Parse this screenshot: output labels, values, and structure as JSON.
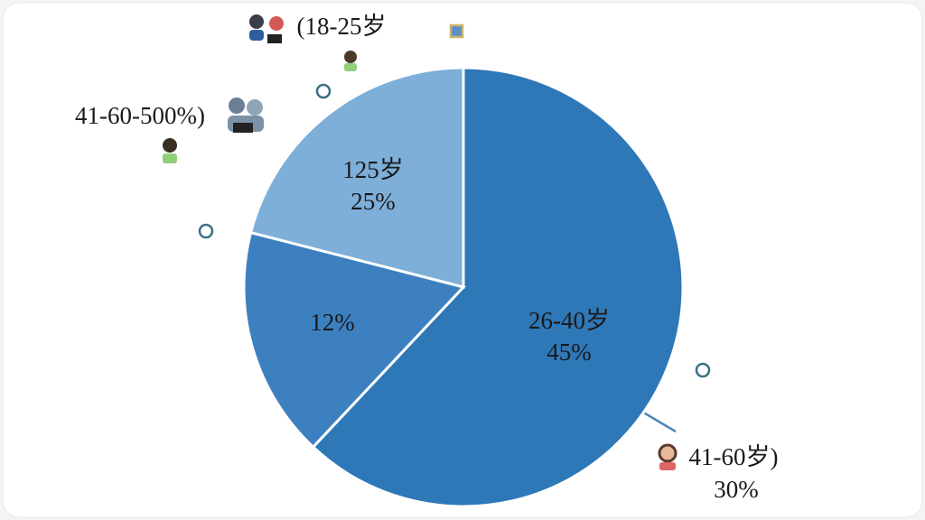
{
  "chart_data": {
    "type": "pie",
    "categories": [
      null,
      null,
      null
    ],
    "values": [
      62,
      17,
      21
    ],
    "colors": [
      "#2e78b8",
      "#3d80c0",
      "#7dafd9"
    ],
    "annotations": [
      "26-40岁",
      "45%",
      "12%",
      "125岁",
      "25%",
      "(18-25岁",
      "41-60-500%)",
      "41-60岁)",
      "30%"
    ]
  }
}
